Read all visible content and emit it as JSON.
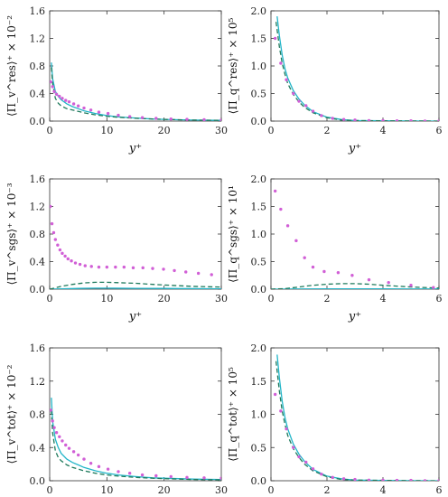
{
  "chart_data": [
    {
      "type": "line",
      "ylabel": "⟨Π_v^res⟩⁺ × 10⁻²",
      "xlabel": "y⁺",
      "xlim": [
        0,
        30
      ],
      "ylim": [
        0,
        1.6
      ],
      "xticks": [
        0,
        10,
        20,
        30
      ],
      "xtick_labels": [
        "0",
        "10",
        "20",
        "30"
      ],
      "yticks": [
        0,
        0.4,
        0.8,
        1.2,
        1.6
      ],
      "ytick_labels": [
        "0.0",
        "0.4",
        "0.8",
        "1.2",
        "1.6"
      ],
      "series": [
        {
          "style": "solid",
          "color": "#22b5c8",
          "x": [
            0.3,
            0.5,
            1,
            1.5,
            2,
            3,
            4,
            5,
            6,
            8,
            10,
            12,
            15,
            18,
            20,
            25,
            30
          ],
          "y": [
            0.85,
            0.62,
            0.43,
            0.36,
            0.31,
            0.25,
            0.21,
            0.18,
            0.15,
            0.11,
            0.08,
            0.06,
            0.045,
            0.03,
            0.025,
            0.015,
            0.01
          ]
        },
        {
          "style": "dashed",
          "color": "#1f7a5c",
          "x": [
            0.3,
            0.5,
            1,
            1.5,
            2,
            3,
            4,
            5,
            6,
            8,
            10,
            12,
            15,
            18,
            20,
            25,
            30
          ],
          "y": [
            0.78,
            0.55,
            0.33,
            0.26,
            0.22,
            0.18,
            0.16,
            0.14,
            0.12,
            0.09,
            0.07,
            0.055,
            0.04,
            0.03,
            0.025,
            0.015,
            0.01
          ]
        },
        {
          "style": "dots",
          "color": "#d15fd6",
          "x": [
            0.2,
            0.5,
            0.8,
            1.2,
            1.7,
            2.2,
            2.8,
            3.4,
            4.2,
            5.0,
            6.0,
            7.2,
            8.6,
            10.2,
            12,
            14,
            16.2,
            18.6,
            21.2,
            24,
            27,
            30
          ],
          "y": [
            0.57,
            0.5,
            0.43,
            0.39,
            0.36,
            0.33,
            0.3,
            0.28,
            0.25,
            0.22,
            0.19,
            0.16,
            0.13,
            0.11,
            0.085,
            0.065,
            0.05,
            0.04,
            0.03,
            0.025,
            0.02,
            0.015
          ]
        }
      ]
    },
    {
      "type": "line",
      "ylabel": "⟨Π_q^res⟩⁺ × 10⁵",
      "xlabel": "y⁺",
      "xlim": [
        0,
        6
      ],
      "ylim": [
        0,
        2.0
      ],
      "xticks": [
        0,
        2,
        4,
        6
      ],
      "xtick_labels": [
        "0",
        "2",
        "4",
        "6"
      ],
      "yticks": [
        0,
        0.5,
        1.0,
        1.5,
        2.0
      ],
      "ytick_labels": [
        "0.0",
        "0.5",
        "1.0",
        "1.5",
        "2.0"
      ],
      "series": [
        {
          "style": "solid",
          "color": "#22b5c8",
          "x": [
            0.22,
            0.3,
            0.4,
            0.5,
            0.6,
            0.8,
            1.0,
            1.2,
            1.5,
            2.0,
            2.5,
            3,
            4,
            5,
            6
          ],
          "y": [
            1.9,
            1.55,
            1.2,
            0.95,
            0.78,
            0.55,
            0.4,
            0.29,
            0.17,
            0.07,
            0.03,
            0.01,
            0.005,
            0.002,
            0.0
          ]
        },
        {
          "style": "dashed",
          "color": "#1f7a5c",
          "x": [
            0.18,
            0.3,
            0.4,
            0.5,
            0.6,
            0.8,
            1.0,
            1.2,
            1.5,
            2.0,
            2.5,
            3,
            4,
            5,
            6
          ],
          "y": [
            1.8,
            1.35,
            1.05,
            0.85,
            0.68,
            0.48,
            0.35,
            0.25,
            0.15,
            0.06,
            0.02,
            0.01,
            0.005,
            0.002,
            0.0
          ]
        },
        {
          "style": "dots",
          "color": "#d15fd6",
          "x": [
            0.15,
            0.35,
            0.55,
            0.8,
            1.0,
            1.25,
            1.5,
            1.8,
            2.2,
            2.6,
            3.0,
            3.5,
            4.0,
            4.5,
            5.0,
            5.5,
            6.0
          ],
          "y": [
            1.5,
            1.05,
            0.75,
            0.5,
            0.36,
            0.28,
            0.18,
            0.1,
            0.05,
            0.03,
            0.02,
            0.01,
            0.01,
            0.005,
            0.005,
            0.0,
            0.0
          ]
        }
      ]
    },
    {
      "type": "line",
      "ylabel": "⟨Π_v^sgs⟩⁺ × 10⁻³",
      "xlabel": "y⁺",
      "xlim": [
        0,
        30
      ],
      "ylim": [
        0,
        1.6
      ],
      "xticks": [
        0,
        10,
        20,
        30
      ],
      "xtick_labels": [
        "0",
        "10",
        "20",
        "30"
      ],
      "yticks": [
        0,
        0.4,
        0.8,
        1.2,
        1.6
      ],
      "ytick_labels": [
        "0.0",
        "0.4",
        "0.8",
        "1.2",
        "1.6"
      ],
      "series": [
        {
          "style": "solid",
          "color": "#22b5c8",
          "x": [
            0,
            2,
            5,
            8,
            10,
            15,
            20,
            25,
            30
          ],
          "y": [
            0.0,
            0.005,
            0.01,
            0.015,
            0.015,
            0.012,
            0.01,
            0.008,
            0.005
          ]
        },
        {
          "style": "dashed",
          "color": "#1f7a5c",
          "x": [
            0,
            1,
            2,
            4,
            6,
            8,
            10,
            12,
            15,
            18,
            20,
            25,
            30
          ],
          "y": [
            0.0,
            0.02,
            0.04,
            0.07,
            0.09,
            0.1,
            0.1,
            0.095,
            0.085,
            0.07,
            0.06,
            0.04,
            0.03
          ]
        },
        {
          "style": "dots",
          "color": "#d15fd6",
          "x": [
            0.1,
            0.4,
            0.7,
            1.0,
            1.4,
            1.8,
            2.2,
            2.7,
            3.2,
            3.8,
            4.5,
            5.3,
            6.2,
            7.3,
            8.6,
            10,
            11.5,
            13,
            14.6,
            16.3,
            18,
            19.9,
            21.8,
            23.8,
            26,
            28.3
          ],
          "y": [
            1.2,
            0.95,
            0.82,
            0.72,
            0.64,
            0.57,
            0.52,
            0.48,
            0.44,
            0.41,
            0.38,
            0.36,
            0.34,
            0.33,
            0.32,
            0.32,
            0.32,
            0.32,
            0.31,
            0.31,
            0.3,
            0.29,
            0.27,
            0.25,
            0.23,
            0.21
          ]
        }
      ]
    },
    {
      "type": "line",
      "ylabel": "⟨Π_q^sgs⟩⁺ × 10¹",
      "xlabel": "y⁺",
      "xlim": [
        0,
        6
      ],
      "ylim": [
        0,
        2.0
      ],
      "xticks": [
        0,
        2,
        4,
        6
      ],
      "xtick_labels": [
        "0",
        "2",
        "4",
        "6"
      ],
      "yticks": [
        0,
        0.5,
        1.0,
        1.5,
        2.0
      ],
      "ytick_labels": [
        "0.0",
        "0.5",
        "1.0",
        "1.5",
        "2.0"
      ],
      "series": [
        {
          "style": "solid",
          "color": "#22b5c8",
          "x": [
            0,
            1,
            2,
            3,
            4,
            5,
            6
          ],
          "y": [
            0.0,
            0.003,
            0.006,
            0.006,
            0.005,
            0.004,
            0.003
          ]
        },
        {
          "style": "dashed",
          "color": "#1f7a5c",
          "x": [
            0,
            0.5,
            1,
            1.5,
            2,
            2.5,
            3,
            3.5,
            4,
            5,
            6
          ],
          "y": [
            0.0,
            0.01,
            0.04,
            0.07,
            0.09,
            0.1,
            0.1,
            0.09,
            0.07,
            0.04,
            0.02
          ]
        },
        {
          "style": "dots",
          "color": "#d15fd6",
          "x": [
            0.15,
            0.35,
            0.6,
            0.9,
            1.2,
            1.5,
            1.9,
            2.4,
            2.9,
            3.5,
            4.2,
            5.0,
            5.8
          ],
          "y": [
            1.78,
            1.45,
            1.15,
            0.88,
            0.57,
            0.4,
            0.32,
            0.3,
            0.25,
            0.17,
            0.12,
            0.07,
            0.03
          ]
        }
      ]
    },
    {
      "type": "line",
      "ylabel": "⟨Π_v^tot⟩⁺ × 10⁻²",
      "xlabel": "y⁺",
      "xlim": [
        0,
        30
      ],
      "ylim": [
        0,
        1.6
      ],
      "xticks": [
        0,
        10,
        20,
        30
      ],
      "xtick_labels": [
        "0",
        "10",
        "20",
        "30"
      ],
      "yticks": [
        0,
        0.4,
        0.8,
        1.2,
        1.6
      ],
      "ytick_labels": [
        "0.0",
        "0.4",
        "0.8",
        "1.2",
        "1.6"
      ],
      "series": [
        {
          "style": "solid",
          "color": "#22b5c8",
          "x": [
            0.3,
            0.5,
            1,
            1.5,
            2,
            3,
            4,
            5,
            6,
            8,
            10,
            12,
            15,
            18,
            20,
            25,
            30
          ],
          "y": [
            1.0,
            0.72,
            0.5,
            0.4,
            0.33,
            0.26,
            0.22,
            0.19,
            0.16,
            0.12,
            0.09,
            0.07,
            0.05,
            0.035,
            0.03,
            0.02,
            0.015
          ]
        },
        {
          "style": "dashed",
          "color": "#1f7a5c",
          "x": [
            0.3,
            0.5,
            1,
            1.5,
            2,
            3,
            4,
            5,
            6,
            8,
            10,
            12,
            15,
            18,
            20,
            25,
            30
          ],
          "y": [
            0.85,
            0.58,
            0.36,
            0.28,
            0.24,
            0.19,
            0.16,
            0.14,
            0.12,
            0.09,
            0.07,
            0.055,
            0.04,
            0.03,
            0.025,
            0.015,
            0.01
          ]
        },
        {
          "style": "dots",
          "color": "#d15fd6",
          "x": [
            0.2,
            0.5,
            0.8,
            1.2,
            1.7,
            2.2,
            2.8,
            3.4,
            4.2,
            5.0,
            6.0,
            7.2,
            8.6,
            10.2,
            12,
            14,
            16.2,
            18.6,
            21.2,
            24,
            27,
            30
          ],
          "y": [
            0.85,
            0.72,
            0.64,
            0.58,
            0.53,
            0.48,
            0.43,
            0.39,
            0.35,
            0.31,
            0.26,
            0.21,
            0.17,
            0.14,
            0.11,
            0.09,
            0.07,
            0.06,
            0.05,
            0.04,
            0.035,
            0.03
          ]
        }
      ]
    },
    {
      "type": "line",
      "ylabel": "⟨Π_q^tot⟩⁺ × 10⁵",
      "xlabel": "y⁺",
      "xlim": [
        0,
        6
      ],
      "ylim": [
        0,
        2.0
      ],
      "xticks": [
        0,
        2,
        4,
        6
      ],
      "xtick_labels": [
        "0",
        "2",
        "4",
        "6"
      ],
      "yticks": [
        0,
        0.5,
        1.0,
        1.5,
        2.0
      ],
      "ytick_labels": [
        "0.0",
        "0.5",
        "1.0",
        "1.5",
        "2.0"
      ],
      "series": [
        {
          "style": "solid",
          "color": "#22b5c8",
          "x": [
            0.22,
            0.3,
            0.4,
            0.5,
            0.6,
            0.8,
            1.0,
            1.2,
            1.5,
            2.0,
            2.5,
            3,
            4,
            5,
            6
          ],
          "y": [
            1.9,
            1.55,
            1.2,
            0.95,
            0.78,
            0.55,
            0.4,
            0.29,
            0.17,
            0.07,
            0.03,
            0.01,
            0.005,
            0.002,
            0.0
          ]
        },
        {
          "style": "dashed",
          "color": "#1f7a5c",
          "x": [
            0.18,
            0.3,
            0.4,
            0.5,
            0.6,
            0.8,
            1.0,
            1.2,
            1.5,
            2.0,
            2.5,
            3,
            4,
            5,
            6
          ],
          "y": [
            1.8,
            1.35,
            1.05,
            0.85,
            0.68,
            0.48,
            0.35,
            0.25,
            0.15,
            0.06,
            0.02,
            0.01,
            0.005,
            0.002,
            0.0
          ]
        },
        {
          "style": "dots",
          "color": "#d15fd6",
          "x": [
            0.15,
            0.35,
            0.55,
            0.8,
            1.0,
            1.25,
            1.5,
            1.8,
            2.2,
            2.6,
            3.0,
            3.5,
            4.0,
            4.5,
            5.0,
            5.5,
            6.0
          ],
          "y": [
            1.3,
            1.05,
            0.78,
            0.5,
            0.36,
            0.28,
            0.18,
            0.1,
            0.05,
            0.03,
            0.02,
            0.01,
            0.01,
            0.005,
            0.005,
            0.0,
            0.0
          ]
        }
      ]
    }
  ]
}
